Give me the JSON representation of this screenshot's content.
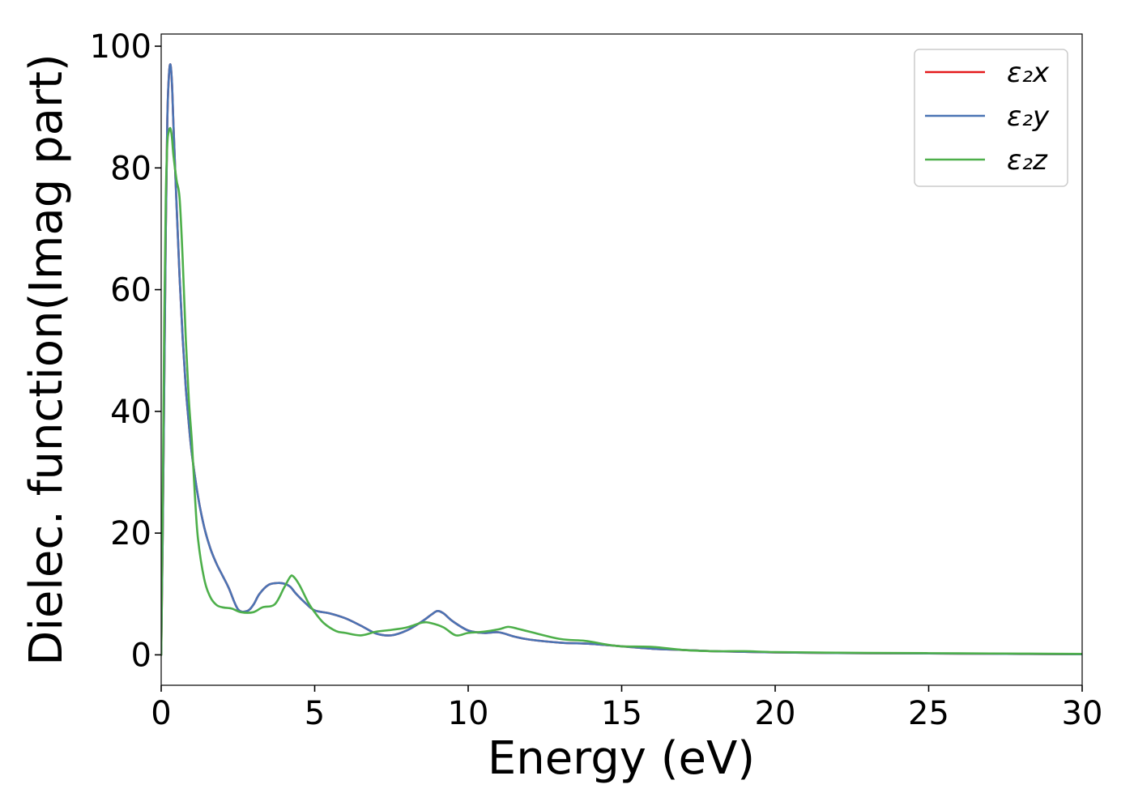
{
  "chart_data": {
    "type": "line",
    "xlabel": "Energy (eV)",
    "ylabel": "Dielec. function(Imag part)",
    "xlim": [
      0,
      30
    ],
    "ylim": [
      -5,
      102
    ],
    "xticks": [
      0,
      5,
      10,
      15,
      20,
      25,
      30
    ],
    "yticks": [
      0,
      20,
      40,
      60,
      80,
      100
    ],
    "grid": false,
    "legend_position": "top-right",
    "series": [
      {
        "name": "ε₂x",
        "color": "#e41a1c",
        "x": [
          0,
          0.05,
          0.1,
          0.15,
          0.2,
          0.25,
          0.3,
          0.35,
          0.4,
          0.5,
          0.6,
          0.7,
          0.8,
          0.9,
          1.0,
          1.2,
          1.4,
          1.6,
          1.8,
          2.0,
          2.2,
          2.5,
          2.8,
          3.0,
          3.2,
          3.5,
          3.8,
          4.0,
          4.2,
          4.4,
          4.7,
          5.0,
          5.5,
          6.0,
          6.5,
          7.0,
          7.5,
          8.0,
          8.5,
          8.8,
          9.0,
          9.2,
          9.5,
          10.0,
          10.5,
          11.0,
          11.5,
          12.0,
          13.0,
          14.0,
          15.0,
          16.0,
          17.0,
          18.0,
          19.0,
          20.0,
          22.0,
          24.0,
          26.0,
          28.0,
          30.0
        ],
        "y": [
          0,
          20,
          45,
          70,
          88,
          95,
          97,
          94,
          87,
          74,
          62,
          52,
          44,
          38,
          33,
          26,
          21,
          17.5,
          15,
          13,
          11,
          7.5,
          7.2,
          8.2,
          10,
          11.5,
          11.8,
          11.7,
          11.2,
          10,
          8.5,
          7.3,
          6.8,
          6.0,
          4.8,
          3.5,
          3.2,
          4.0,
          5.5,
          6.6,
          7.2,
          6.8,
          5.5,
          4.0,
          3.6,
          3.7,
          3.0,
          2.5,
          2.0,
          1.8,
          1.4,
          1.0,
          0.8,
          0.6,
          0.5,
          0.4,
          0.3,
          0.25,
          0.2,
          0.15,
          0.1
        ]
      },
      {
        "name": "ε₂y",
        "color": "#4a74b4",
        "x": [
          0,
          0.05,
          0.1,
          0.15,
          0.2,
          0.25,
          0.3,
          0.35,
          0.4,
          0.5,
          0.6,
          0.7,
          0.8,
          0.9,
          1.0,
          1.2,
          1.4,
          1.6,
          1.8,
          2.0,
          2.2,
          2.5,
          2.8,
          3.0,
          3.2,
          3.5,
          3.8,
          4.0,
          4.2,
          4.4,
          4.7,
          5.0,
          5.5,
          6.0,
          6.5,
          7.0,
          7.5,
          8.0,
          8.5,
          8.8,
          9.0,
          9.2,
          9.5,
          10.0,
          10.5,
          11.0,
          11.5,
          12.0,
          13.0,
          14.0,
          15.0,
          16.0,
          17.0,
          18.0,
          19.0,
          20.0,
          22.0,
          24.0,
          26.0,
          28.0,
          30.0
        ],
        "y": [
          0,
          20,
          45,
          70,
          88,
          95,
          97,
          94,
          87,
          74,
          62,
          52,
          44,
          38,
          33,
          26,
          21,
          17.5,
          15,
          13,
          11,
          7.5,
          7.2,
          8.2,
          10,
          11.5,
          11.8,
          11.7,
          11.2,
          10,
          8.5,
          7.3,
          6.8,
          6.0,
          4.8,
          3.5,
          3.2,
          4.0,
          5.5,
          6.6,
          7.2,
          6.8,
          5.5,
          4.0,
          3.6,
          3.7,
          3.0,
          2.5,
          2.0,
          1.8,
          1.4,
          1.0,
          0.8,
          0.6,
          0.5,
          0.4,
          0.3,
          0.25,
          0.2,
          0.15,
          0.1
        ]
      },
      {
        "name": "ε₂z",
        "color": "#4daf4a",
        "x": [
          0,
          0.05,
          0.1,
          0.15,
          0.2,
          0.25,
          0.3,
          0.35,
          0.4,
          0.5,
          0.6,
          0.7,
          0.8,
          0.9,
          1.0,
          1.1,
          1.2,
          1.4,
          1.6,
          1.8,
          2.0,
          2.3,
          2.6,
          3.0,
          3.3,
          3.7,
          4.0,
          4.2,
          4.3,
          4.5,
          4.8,
          5.0,
          5.3,
          5.7,
          6.0,
          6.5,
          7.0,
          7.5,
          8.0,
          8.5,
          8.8,
          9.2,
          9.6,
          10.0,
          10.5,
          11.0,
          11.3,
          11.6,
          12.0,
          13.0,
          13.8,
          14.5,
          15.0,
          16.0,
          17.0,
          18.0,
          19.0,
          20.0,
          22.0,
          24.0,
          26.0,
          28.0,
          30.0
        ],
        "y": [
          0,
          25,
          55,
          75,
          84,
          86,
          86.5,
          85,
          82,
          78,
          75,
          65,
          52,
          42,
          35,
          26,
          19,
          12.5,
          9.5,
          8.2,
          7.8,
          7.6,
          7.0,
          7.0,
          7.8,
          8.3,
          11.0,
          12.8,
          12.9,
          11.5,
          8.5,
          7.0,
          5.2,
          3.9,
          3.6,
          3.2,
          3.8,
          4.1,
          4.5,
          5.3,
          5.2,
          4.5,
          3.2,
          3.6,
          3.8,
          4.2,
          4.6,
          4.3,
          3.8,
          2.6,
          2.3,
          1.7,
          1.4,
          1.3,
          0.8,
          0.6,
          0.6,
          0.45,
          0.35,
          0.3,
          0.25,
          0.2,
          0.15
        ]
      }
    ]
  }
}
